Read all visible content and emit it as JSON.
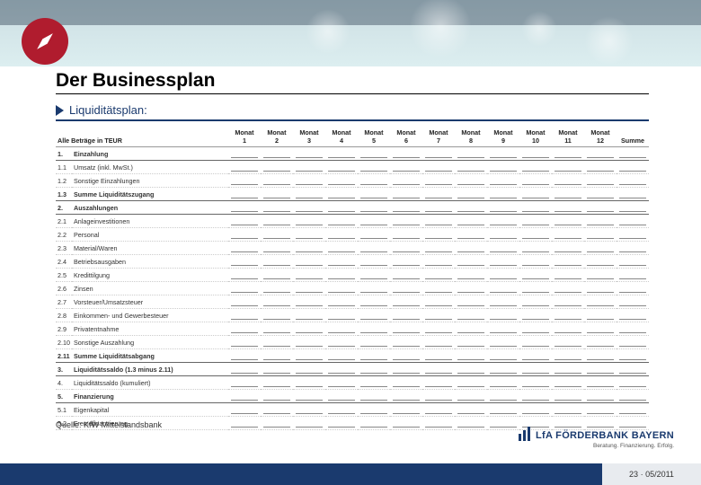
{
  "header": {
    "title": "Der Businessplan",
    "subtitle": "Liquiditätsplan:"
  },
  "table": {
    "header_label": "Alle Beträge in TEUR",
    "month_prefix": "Monat",
    "months": [
      "1",
      "2",
      "3",
      "4",
      "5",
      "6",
      "7",
      "8",
      "9",
      "10",
      "11",
      "12"
    ],
    "sum_label": "Summe",
    "rows": [
      {
        "num": "1.",
        "label": "Einzahlung",
        "bold": true
      },
      {
        "num": "1.1",
        "label": "Umsatz (inkl. MwSt.)",
        "bold": false
      },
      {
        "num": "1.2",
        "label": "Sonstige Einzahlungen",
        "bold": false
      },
      {
        "num": "1.3",
        "label": "Summe Liquiditätszugang",
        "bold": true
      },
      {
        "num": "2.",
        "label": "Auszahlungen",
        "bold": true
      },
      {
        "num": "2.1",
        "label": "Anlageinvestitionen",
        "bold": false
      },
      {
        "num": "2.2",
        "label": "Personal",
        "bold": false
      },
      {
        "num": "2.3",
        "label": "Material/Waren",
        "bold": false
      },
      {
        "num": "2.4",
        "label": "Betriebsausgaben",
        "bold": false
      },
      {
        "num": "2.5",
        "label": "Kredittilgung",
        "bold": false
      },
      {
        "num": "2.6",
        "label": "Zinsen",
        "bold": false
      },
      {
        "num": "2.7",
        "label": "Vorsteuer/Umsatzsteuer",
        "bold": false
      },
      {
        "num": "2.8",
        "label": "Einkommen- und Gewerbesteuer",
        "bold": false
      },
      {
        "num": "2.9",
        "label": "Privatentnahme",
        "bold": false
      },
      {
        "num": "2.10",
        "label": "Sonstige Auszahlung",
        "bold": false
      },
      {
        "num": "2.11",
        "label": "Summe Liquiditätsabgang",
        "bold": true
      },
      {
        "num": "3.",
        "label": "Liquiditätssaldo (1.3 minus 2.11)",
        "bold": true
      },
      {
        "num": "4.",
        "label": "Liquiditätssaldo (kumuliert)",
        "bold": false
      },
      {
        "num": "5.",
        "label": "Finanzierung",
        "bold": true
      },
      {
        "num": "5.1",
        "label": "Eigenkapital",
        "bold": false
      },
      {
        "num": "5.2",
        "label": "Fremdfinanzierung",
        "bold": false
      }
    ]
  },
  "source": "Quelle: KfW Mittelstandsbank",
  "logo": {
    "main": "LfA FÖRDERBANK BAYERN",
    "sub": "Beratung. Finanzierung. Erfolg."
  },
  "footer": {
    "page": "23",
    "date": "05/2011"
  },
  "colors": {
    "accent": "#1a3a6e",
    "compass": "#b01c2e",
    "header_bg": "#d4e6e9"
  }
}
